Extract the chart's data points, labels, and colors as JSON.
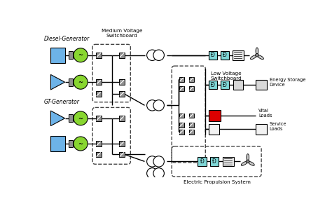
{
  "bg_color": "#ffffff",
  "labels": {
    "diesel_generator": "Diesel-Generator",
    "gt_generator": "GT-Generator",
    "mv_switchboard": "Medium Voltage\nSwitchboard",
    "lv_switchboard": "Low Voltage\nSwitchboard",
    "energy_storage": "Energy Storage\nDevice",
    "vital_loads": "Vital\nLoads",
    "service_loads": "Service\nLoads",
    "electric_propulsion": "Electric Propulsion System"
  },
  "colors": {
    "blue_box": "#6db3e8",
    "green_circle": "#88d630",
    "gray_switch": "#909090",
    "cyan_box": "#80d8d8",
    "red_box": "#dd0000",
    "white_box": "#f0f0f0",
    "light_gray_box": "#d8d8d8",
    "line": "#000000",
    "text": "#000000",
    "transformer_fill": "#ffffff",
    "motor_fill": "#e8e8e8"
  },
  "figsize": [
    4.74,
    2.84
  ],
  "dpi": 100
}
